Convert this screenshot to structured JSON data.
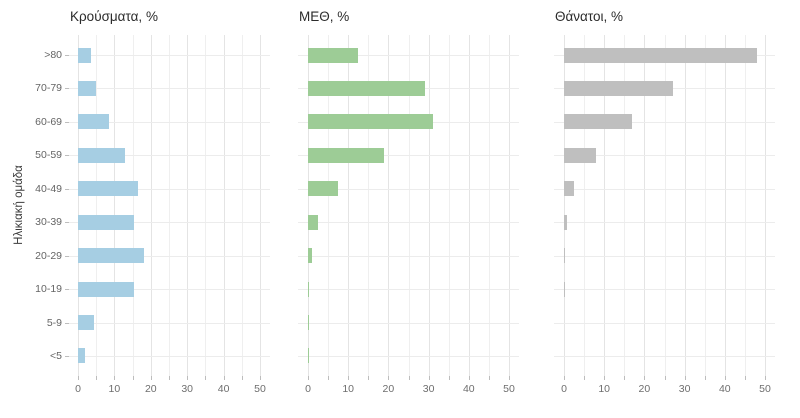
{
  "y_axis_label": "Ηλικιακή ομάδα",
  "categories": [
    ">80",
    "70-79",
    "60-69",
    "50-59",
    "40-49",
    "30-39",
    "20-29",
    "10-19",
    "5-9",
    "<5"
  ],
  "colors": {
    "cases_bar": "#A6CEE3",
    "icu_bar": "#9DCC96",
    "deaths_bar": "#BFBFBF",
    "grid_major": "#E4E4E4",
    "grid_minor": "#EFEFEF",
    "grid_row": "#ECECEC",
    "axis_tick": "#BDBDBD",
    "title_text": "#2B2B2B",
    "axis_text": "#6E6E6E"
  },
  "chart_data": [
    {
      "type": "bar",
      "name": "cases",
      "title": "Κρούσματα, %",
      "orientation": "horizontal",
      "values": [
        3.5,
        5,
        8.5,
        13,
        16.5,
        15.5,
        18,
        15.5,
        4.5,
        2
      ],
      "xlim": [
        0,
        50
      ],
      "xticks": [
        0,
        10,
        20,
        30,
        40,
        50
      ],
      "grid_every": 5,
      "color": "#A6CEE3",
      "legend": "none",
      "grid": "on"
    },
    {
      "type": "bar",
      "name": "icu",
      "title": "ΜΕΘ, %",
      "orientation": "horizontal",
      "values": [
        12.5,
        29,
        31,
        19,
        7.5,
        2.5,
        1,
        0.3,
        0.2,
        0.2
      ],
      "xlim": [
        0,
        50
      ],
      "xticks": [
        0,
        10,
        20,
        30,
        40,
        50
      ],
      "grid_every": 5,
      "color": "#9DCC96",
      "legend": "none",
      "grid": "on"
    },
    {
      "type": "bar",
      "name": "deaths",
      "title": "Θάνατοι, %",
      "orientation": "horizontal",
      "values": [
        48,
        27,
        17,
        8,
        2.5,
        0.7,
        0.3,
        0.15,
        0,
        0
      ],
      "xlim": [
        0,
        50
      ],
      "xticks": [
        0,
        10,
        20,
        30,
        40,
        50
      ],
      "grid_every": 5,
      "color": "#BFBFBF",
      "legend": "none",
      "grid": "on"
    }
  ]
}
